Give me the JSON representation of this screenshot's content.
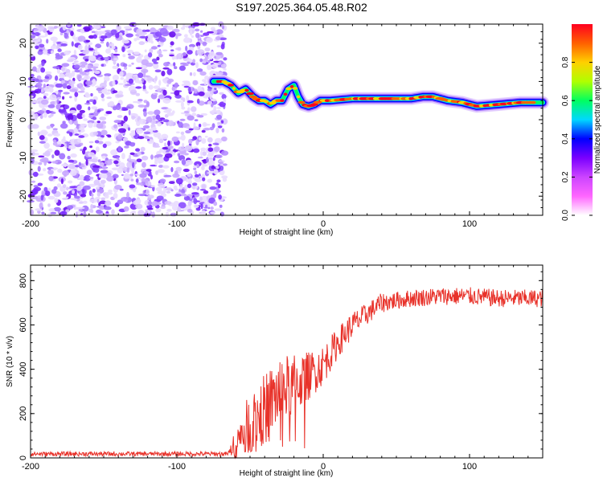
{
  "title": "S197.2025.364.05.48.R02",
  "chart_data": [
    {
      "type": "heatmap",
      "name": "spectrogram",
      "xlabel": "Height of straight line (km)",
      "ylabel": "Frequency (Hz)",
      "xlim": [
        -200,
        150
      ],
      "ylim": [
        -25,
        25
      ],
      "xticks": [
        -200,
        -100,
        0,
        100
      ],
      "xtick_labels": [
        "-200",
        "-100",
        "0",
        "100"
      ],
      "yticks": [
        20,
        10,
        0,
        -10,
        -20
      ],
      "ytick_labels": [
        "20",
        "10",
        "0",
        "-10",
        "-20"
      ],
      "noise_region": {
        "x_start": -200,
        "x_end": -67,
        "f_min": -25,
        "f_max": 25
      },
      "ridge": {
        "x": [
          -75,
          -68,
          -63,
          -58,
          -53,
          -48,
          -44,
          -40,
          -36,
          -32,
          -28,
          -24,
          -20,
          -17,
          -14,
          -10,
          -6,
          -2,
          5,
          20,
          40,
          60,
          68,
          75,
          85,
          95,
          105,
          120,
          135,
          150
        ],
        "freq": [
          10,
          10,
          9,
          7,
          8,
          6,
          5,
          5,
          4,
          5,
          5,
          8,
          9,
          6,
          4,
          3.5,
          4,
          5,
          5,
          5.5,
          5.5,
          5.5,
          6,
          6,
          5,
          4.5,
          3.5,
          4,
          4.5,
          4.5
        ]
      },
      "colorbar": {
        "label": "Normalized spectral amplitude",
        "range": [
          0,
          1
        ],
        "ticks": [
          0.0,
          0.2,
          0.4,
          0.6,
          0.8
        ],
        "tick_labels": [
          "0.0",
          "0.2",
          "0.4",
          "0.6",
          "0.8"
        ],
        "colors": [
          "#ffffff",
          "#ff66ff",
          "#cc44ff",
          "#7a00ff",
          "#0000ff",
          "#00d8ff",
          "#00ff60",
          "#b0ff00",
          "#ffd000",
          "#ff6000",
          "#ff0020"
        ]
      },
      "grid": false
    },
    {
      "type": "line",
      "name": "snr",
      "xlabel": "Height of straight line (km)",
      "ylabel": "SNR (10 * v/v)",
      "xlim": [
        -200,
        150
      ],
      "ylim": [
        0,
        870
      ],
      "xticks": [
        -200,
        -100,
        0,
        100
      ],
      "xtick_labels": [
        "-200",
        "-100",
        "0",
        "100"
      ],
      "yticks": [
        0,
        200,
        400,
        600,
        800
      ],
      "ytick_labels": [
        "0",
        "200",
        "400",
        "600",
        "800"
      ],
      "series": [
        {
          "name": "SNR",
          "color": "#e8322a",
          "trend_x": [
            -200,
            -65,
            -58,
            -50,
            -40,
            -30,
            -20,
            -10,
            0,
            10,
            20,
            30,
            40,
            50,
            60,
            80,
            100,
            120,
            150
          ],
          "trend_y": [
            18,
            18,
            80,
            160,
            220,
            300,
            330,
            370,
            420,
            520,
            600,
            650,
            700,
            710,
            720,
            730,
            730,
            720,
            720
          ],
          "noise_amplitude": [
            10,
            10,
            90,
            140,
            160,
            160,
            140,
            110,
            90,
            70,
            60,
            50,
            45,
            40,
            40,
            40,
            40,
            40,
            40
          ]
        }
      ],
      "grid": false
    }
  ]
}
